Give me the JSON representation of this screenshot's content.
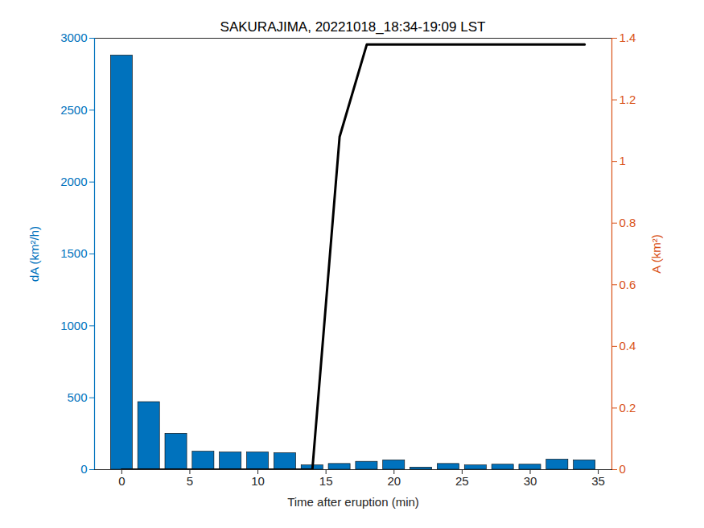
{
  "chart_data": {
    "type": "bar",
    "title": "SAKURAJIMA, 20221018_18:34-19:09 LST",
    "xlabel": "Time after eruption (min)",
    "ylabel": "dA (km²/h)",
    "y2label": "A (km²)",
    "x": [
      0,
      2,
      4,
      6,
      8,
      10,
      12,
      14,
      16,
      18,
      20,
      22,
      24,
      26,
      28,
      30,
      32,
      34
    ],
    "series": [
      {
        "type": "bar",
        "color": "#0072BD",
        "values": [
          2880,
          470,
          250,
          125,
          120,
          120,
          115,
          30,
          40,
          55,
          65,
          15,
          40,
          30,
          35,
          35,
          70,
          65
        ]
      },
      {
        "type": "line",
        "color": "#000000",
        "axis": "y2",
        "values": [
          0,
          0,
          0,
          0,
          0,
          0,
          0,
          0,
          1.08,
          1.38,
          1.38,
          1.38,
          1.38,
          1.38,
          1.38,
          1.38,
          1.38,
          1.38
        ]
      }
    ],
    "xlim": [
      -2,
      36
    ],
    "xticks": [
      0,
      5,
      10,
      15,
      20,
      25,
      30,
      35
    ],
    "ylim": [
      0,
      3000
    ],
    "yticks": [
      0,
      500,
      1000,
      1500,
      2000,
      2500,
      3000
    ],
    "y2lim": [
      0,
      1.4
    ],
    "y2ticks": [
      0,
      0.2,
      0.4,
      0.6,
      0.8,
      1,
      1.2,
      1.4
    ]
  }
}
